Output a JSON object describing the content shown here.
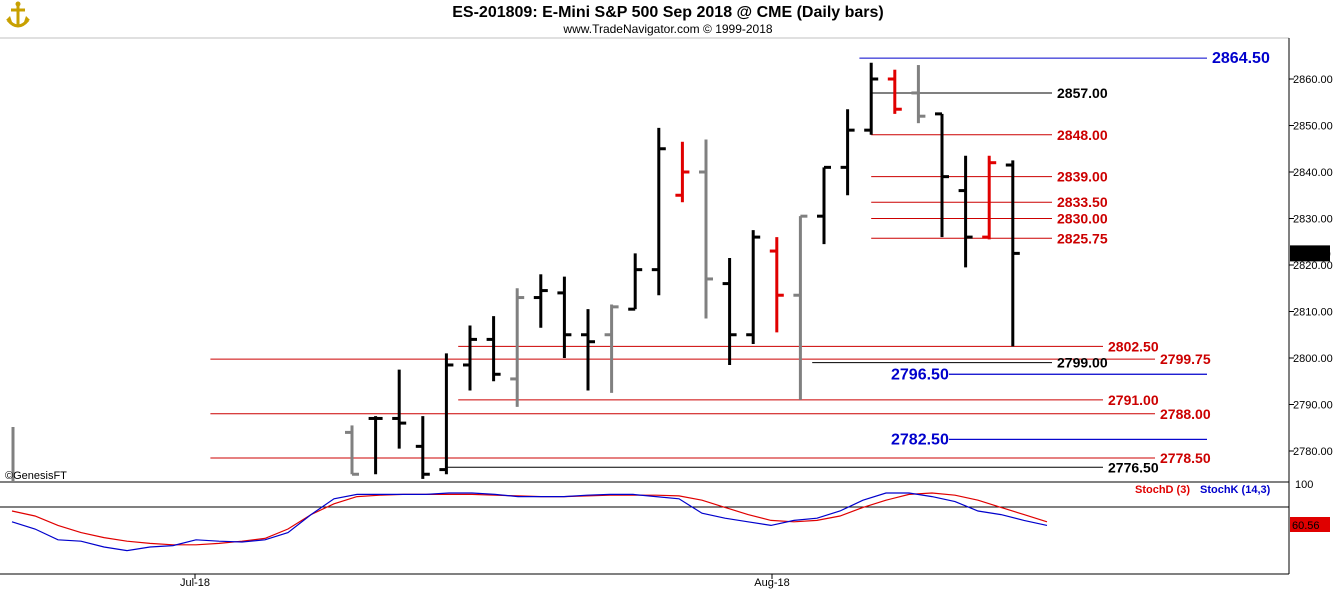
{
  "header": {
    "title": "ES-201809:  E-Mini S&P 500 Sep 2018 @ CME  (Daily bars)",
    "copyright": "www.TradeNavigator.com © 1999-2018",
    "logo_icon": "anchor-logo-icon",
    "watermark": "©GenesisFT"
  },
  "colors": {
    "black": "#000000",
    "gray": "#808080",
    "red": "#e00000",
    "blue": "#0000cc",
    "darkred": "#cc0000"
  },
  "chart_data": [
    {
      "type": "ohlc",
      "price_axis": {
        "min": 2773,
        "max": 2866,
        "ticks": [
          "2780.00",
          "2790.00",
          "2800.00",
          "2810.00",
          "2820.00",
          "2830.00",
          "2840.00",
          "2850.00",
          "2860.00"
        ],
        "ticks_values": [
          2780,
          2790,
          2800,
          2810,
          2820,
          2830,
          2840,
          2850,
          2860
        ]
      },
      "last_price_label": "2822.50",
      "x_labels": [
        {
          "label": "Jul-18",
          "bar": 8
        },
        {
          "label": "Aug-18",
          "bar": 31
        }
      ],
      "bars": [
        {
          "o": 2784.0,
          "h": 2785.5,
          "l": 2775.0,
          "c": 2775.0,
          "color": "gray"
        },
        {
          "o": 2787.0,
          "h": 2787.5,
          "l": 2775.0,
          "c": 2787.0,
          "color": "black"
        },
        {
          "o": 2787.0,
          "h": 2797.5,
          "l": 2780.5,
          "c": 2786.0,
          "color": "black"
        },
        {
          "o": 2781.0,
          "h": 2787.5,
          "l": 2774.0,
          "c": 2775.0,
          "color": "black"
        },
        {
          "o": 2776.0,
          "h": 2801.0,
          "l": 2775.0,
          "c": 2798.5,
          "color": "black"
        },
        {
          "o": 2798.5,
          "h": 2807.0,
          "l": 2793.0,
          "c": 2804.0,
          "color": "black"
        },
        {
          "o": 2804.0,
          "h": 2809.0,
          "l": 2795.0,
          "c": 2796.5,
          "color": "black"
        },
        {
          "o": 2795.5,
          "h": 2815.0,
          "l": 2789.5,
          "c": 2813.0,
          "color": "gray"
        },
        {
          "o": 2813.0,
          "h": 2818.0,
          "l": 2806.5,
          "c": 2814.5,
          "color": "black"
        },
        {
          "o": 2814.0,
          "h": 2817.5,
          "l": 2800.0,
          "c": 2805.0,
          "color": "black"
        },
        {
          "o": 2805.0,
          "h": 2810.5,
          "l": 2793.0,
          "c": 2803.5,
          "color": "black"
        },
        {
          "o": 2805.0,
          "h": 2811.5,
          "l": 2792.5,
          "c": 2811.0,
          "color": "gray"
        },
        {
          "o": 2810.5,
          "h": 2822.5,
          "l": 2810.5,
          "c": 2819.0,
          "color": "black"
        },
        {
          "o": 2819.0,
          "h": 2849.5,
          "l": 2813.5,
          "c": 2845.0,
          "color": "black"
        },
        {
          "o": 2835.0,
          "h": 2846.5,
          "l": 2833.5,
          "c": 2840.0,
          "color": "red"
        },
        {
          "o": 2840.0,
          "h": 2847.0,
          "l": 2808.5,
          "c": 2817.0,
          "color": "gray"
        },
        {
          "o": 2816.0,
          "h": 2821.5,
          "l": 2798.5,
          "c": 2805.0,
          "color": "black"
        },
        {
          "o": 2805.0,
          "h": 2827.5,
          "l": 2803.0,
          "c": 2826.0,
          "color": "black"
        },
        {
          "o": 2823.0,
          "h": 2826.0,
          "l": 2805.5,
          "c": 2813.5,
          "color": "red"
        },
        {
          "o": 2813.5,
          "h": 2830.5,
          "l": 2791.0,
          "c": 2830.5,
          "color": "gray"
        },
        {
          "o": 2830.5,
          "h": 2841.0,
          "l": 2824.5,
          "c": 2841.0,
          "color": "black"
        },
        {
          "o": 2841.0,
          "h": 2853.5,
          "l": 2835.0,
          "c": 2849.0,
          "color": "black"
        },
        {
          "o": 2849.0,
          "h": 2863.5,
          "l": 2848.0,
          "c": 2860.0,
          "color": "black"
        },
        {
          "o": 2860.0,
          "h": 2862.0,
          "l": 2852.5,
          "c": 2853.5,
          "color": "red"
        },
        {
          "o": 2857.0,
          "h": 2863.0,
          "l": 2850.5,
          "c": 2852.0,
          "color": "gray"
        },
        {
          "o": 2852.5,
          "h": 2852.5,
          "l": 2826.0,
          "c": 2839.0,
          "color": "black"
        },
        {
          "o": 2836.0,
          "h": 2843.5,
          "l": 2819.5,
          "c": 2826.0,
          "color": "black"
        },
        {
          "o": 2826.0,
          "h": 2843.5,
          "l": 2825.5,
          "c": 2842.0,
          "color": "red"
        },
        {
          "o": 2841.5,
          "h": 2842.5,
          "l": 2802.5,
          "c": 2822.5,
          "color": "black"
        }
      ],
      "levels": [
        {
          "value": 2864.5,
          "label": "2864.50",
          "color": "blue",
          "x_start_bar": 21.5
        },
        {
          "value": 2857.0,
          "label": "2857.00",
          "color": "black",
          "x_start_bar": 22
        },
        {
          "value": 2848.0,
          "label": "2848.00",
          "color": "darkred",
          "x_start_bar": 22
        },
        {
          "value": 2839.0,
          "label": "2839.00",
          "color": "darkred",
          "x_start_bar": 22
        },
        {
          "value": 2833.5,
          "label": "2833.50",
          "color": "darkred",
          "x_start_bar": 22
        },
        {
          "value": 2830.0,
          "label": "2830.00",
          "color": "darkred",
          "x_start_bar": 22
        },
        {
          "value": 2825.75,
          "label": "2825.75",
          "color": "darkred",
          "x_start_bar": 22
        },
        {
          "value": 2802.5,
          "label": "2802.50",
          "color": "darkred",
          "x_start_bar": 4.5
        },
        {
          "value": 2799.75,
          "label": "2799.75",
          "color": "darkred",
          "x_start_bar": -6
        },
        {
          "value": 2799.0,
          "label": "2799.00",
          "color": "black",
          "x_start_bar": 19.5
        },
        {
          "value": 2796.5,
          "label": "2796.50",
          "color": "blue",
          "x_start_bar": 19.5
        },
        {
          "value": 2791.0,
          "label": "2791.00",
          "color": "darkred",
          "x_start_bar": 4.5
        },
        {
          "value": 2788.0,
          "label": "2788.00",
          "color": "darkred",
          "x_start_bar": -6
        },
        {
          "value": 2782.5,
          "label": "2782.50",
          "color": "blue",
          "x_start_bar": -6
        },
        {
          "value": 2778.5,
          "label": "2778.50",
          "color": "darkred",
          "x_start_bar": -6
        },
        {
          "value": 2776.5,
          "label": "2776.50",
          "color": "black",
          "x_start_bar": 4
        }
      ]
    },
    {
      "type": "line",
      "name": "Stochastic",
      "y_axis": {
        "min": 0,
        "max": 100,
        "ticks": [
          "100"
        ],
        "ticks_values": [
          100
        ]
      },
      "reference_line": 80,
      "series": [
        {
          "name": "StochD (3)",
          "color": "red",
          "value_label": "60.56",
          "values": [
            75,
            68,
            55,
            45,
            38,
            33,
            30,
            28,
            28,
            30,
            33,
            37,
            50,
            70,
            85,
            95,
            97,
            98,
            98,
            98,
            98,
            97,
            96,
            95,
            95,
            96,
            97,
            97,
            97,
            96,
            90,
            80,
            70,
            62,
            60,
            62,
            68,
            80,
            90,
            98,
            100,
            97,
            90,
            80,
            70,
            60
          ]
        },
        {
          "name": "StochK (14,3)",
          "color": "blue",
          "value_label": "",
          "values": [
            60,
            50,
            35,
            33,
            25,
            20,
            25,
            27,
            35,
            33,
            32,
            35,
            45,
            70,
            92,
            98,
            98,
            98,
            98,
            100,
            100,
            98,
            95,
            95,
            95,
            97,
            98,
            98,
            95,
            92,
            72,
            65,
            60,
            55,
            62,
            65,
            75,
            90,
            100,
            100,
            95,
            88,
            75,
            70,
            62,
            55
          ]
        }
      ]
    }
  ]
}
